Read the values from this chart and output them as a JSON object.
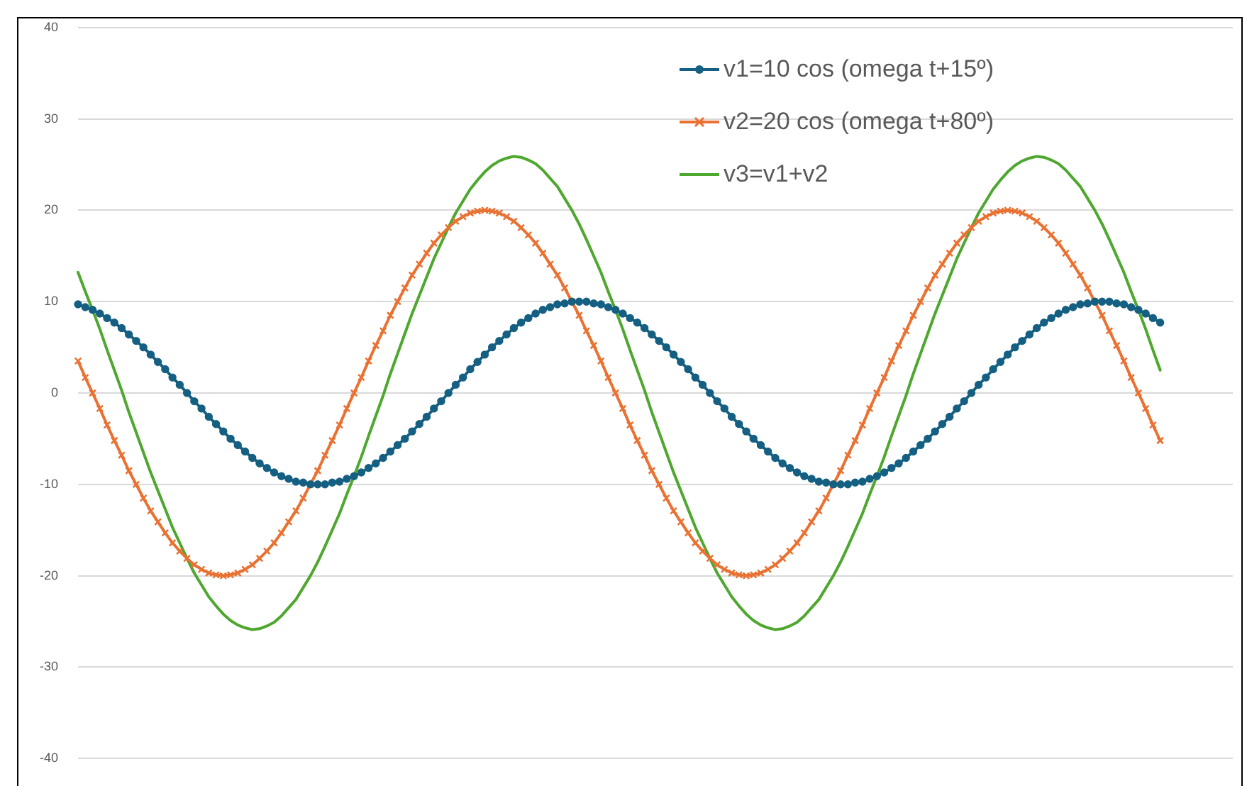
{
  "chart_data": {
    "type": "line",
    "categories": [
      null,
      null,
      null,
      null,
      null,
      null,
      null,
      null,
      null,
      null,
      null,
      null,
      null,
      null,
      null,
      null,
      null,
      null,
      null,
      null,
      null,
      null,
      null,
      null,
      null,
      null,
      null,
      null,
      null,
      null,
      null,
      null,
      null,
      null,
      null,
      null,
      null,
      null,
      null,
      null,
      null,
      null,
      null,
      null,
      null,
      null,
      null,
      null,
      null,
      null,
      null,
      null,
      null,
      null,
      null,
      null,
      null,
      null,
      null,
      null,
      null,
      null,
      null,
      null,
      null,
      null,
      null,
      null,
      null,
      null,
      null,
      null,
      null,
      null,
      null,
      null,
      null,
      null,
      null,
      null,
      null,
      null,
      null,
      null,
      null,
      null,
      null,
      null,
      null,
      null,
      null,
      null,
      null,
      null,
      null,
      null,
      null,
      null,
      null,
      null,
      null,
      null,
      null,
      null,
      null,
      null,
      null,
      null,
      null,
      null,
      null,
      null,
      null,
      null,
      null,
      null,
      null,
      null,
      null,
      null,
      null,
      null,
      null,
      null,
      null,
      null,
      null,
      null,
      null,
      null,
      null,
      null,
      null,
      null,
      null,
      null,
      null,
      null,
      null,
      null,
      null,
      null,
      null,
      null,
      null,
      null,
      null,
      null,
      null,
      null,
      null,
      null,
      null,
      null,
      null,
      null,
      null,
      null,
      null,
      null
    ],
    "series": [
      {
        "name": "v1=10 cos (omega t+15º)",
        "color": "#156082",
        "marker": "circle",
        "values": [
          9.7,
          9.4,
          9.1,
          8.7,
          8.2,
          7.7,
          7.1,
          6.4,
          5.7,
          5,
          4.2,
          3.4,
          2.6,
          1.7,
          0.9,
          0,
          -0.9,
          -1.7,
          -2.6,
          -3.4,
          -4.2,
          -5,
          -5.7,
          -6.4,
          -7.1,
          -7.7,
          -8.2,
          -8.7,
          -9.1,
          -9.4,
          -9.7,
          -9.8,
          -10,
          -10,
          -10,
          -9.8,
          -9.7,
          -9.4,
          -9.1,
          -8.7,
          -8.2,
          -7.7,
          -7.1,
          -6.4,
          -5.7,
          -5,
          -4.2,
          -3.4,
          -2.6,
          -1.7,
          -0.9,
          0,
          0.9,
          1.7,
          2.6,
          3.4,
          4.2,
          5,
          5.7,
          6.4,
          7.1,
          7.7,
          8.2,
          8.7,
          9.1,
          9.4,
          9.7,
          9.8,
          10,
          10,
          10,
          9.8,
          9.7,
          9.4,
          9.1,
          8.7,
          8.2,
          7.7,
          7.1,
          6.4,
          5.7,
          5,
          4.2,
          3.4,
          2.6,
          1.7,
          0.9,
          0,
          -0.9,
          -1.7,
          -2.6,
          -3.4,
          -4.2,
          -5,
          -5.7,
          -6.4,
          -7.1,
          -7.7,
          -8.2,
          -8.7,
          -9.1,
          -9.4,
          -9.7,
          -9.8,
          -10,
          -10,
          -10,
          -9.8,
          -9.7,
          -9.4,
          -9.1,
          -8.7,
          -8.2,
          -7.7,
          -7.1,
          -6.4,
          -5.7,
          -5,
          -4.2,
          -3.4,
          -2.6,
          -1.7,
          -0.9,
          0,
          0.9,
          1.7,
          2.6,
          3.4,
          4.2,
          5,
          5.7,
          6.4,
          7.1,
          7.7,
          8.2,
          8.7,
          9.1,
          9.4,
          9.7,
          9.8,
          10,
          10,
          10,
          9.8,
          9.7,
          9.4,
          9.1,
          8.7,
          8.2,
          7.7,
          null,
          null,
          null,
          null,
          null,
          null,
          null,
          null,
          null,
          null
        ]
      },
      {
        "name": "v2=20 cos (omega t+80º)",
        "color": "#e97132",
        "marker": "cross",
        "values": [
          3.5,
          1.7,
          0,
          -1.7,
          -3.5,
          -5.2,
          -6.8,
          -8.5,
          -10,
          -11.5,
          -12.9,
          -14.1,
          -15.3,
          -16.4,
          -17.3,
          -18.1,
          -18.8,
          -19.3,
          -19.7,
          -19.9,
          -20,
          -19.9,
          -19.7,
          -19.3,
          -18.8,
          -18.1,
          -17.3,
          -16.4,
          -15.3,
          -14.1,
          -12.9,
          -11.5,
          -10,
          -8.5,
          -6.8,
          -5.2,
          -3.5,
          -1.7,
          0,
          1.7,
          3.5,
          5.2,
          6.8,
          8.5,
          10,
          11.5,
          12.9,
          14.1,
          15.3,
          16.4,
          17.3,
          18.1,
          18.8,
          19.3,
          19.7,
          19.9,
          20,
          19.9,
          19.7,
          19.3,
          18.8,
          18.1,
          17.3,
          16.4,
          15.3,
          14.1,
          12.9,
          11.5,
          10,
          8.5,
          6.8,
          5.2,
          3.5,
          1.7,
          0,
          -1.7,
          -3.5,
          -5.2,
          -6.8,
          -8.5,
          -10,
          -11.5,
          -12.9,
          -14.1,
          -15.3,
          -16.4,
          -17.3,
          -18.1,
          -18.8,
          -19.3,
          -19.7,
          -19.9,
          -20,
          -19.9,
          -19.7,
          -19.3,
          -18.8,
          -18.1,
          -17.3,
          -16.4,
          -15.3,
          -14.1,
          -12.9,
          -11.5,
          -10,
          -8.5,
          -6.8,
          -5.2,
          -3.5,
          -1.7,
          0,
          1.7,
          3.5,
          5.2,
          6.8,
          8.5,
          10,
          11.5,
          12.9,
          14.1,
          15.3,
          16.4,
          17.3,
          18.1,
          18.8,
          19.3,
          19.7,
          19.9,
          20,
          19.9,
          19.7,
          19.3,
          18.8,
          18.1,
          17.3,
          16.4,
          15.3,
          14.1,
          12.9,
          11.5,
          10,
          8.5,
          6.8,
          5.2,
          3.5,
          1.7,
          0,
          -1.7,
          -3.5,
          -5.2,
          null,
          null,
          null,
          null,
          null,
          null,
          null,
          null,
          null,
          null
        ]
      },
      {
        "name": "v3=v1+v2",
        "color": "#4ea72e",
        "marker": "none",
        "values": [
          13.2,
          11.1,
          9.1,
          7,
          4.7,
          2.5,
          0.3,
          -2.1,
          -4.3,
          -6.5,
          -8.7,
          -10.7,
          -12.7,
          -14.7,
          -16.4,
          -18.1,
          -19.7,
          -21,
          -22.3,
          -23.3,
          -24.2,
          -24.9,
          -25.4,
          -25.7,
          -25.9,
          -25.8,
          -25.5,
          -25.1,
          -24.4,
          -23.5,
          -22.6,
          -21.3,
          -20,
          -18.5,
          -16.8,
          -15,
          -13.2,
          -11.1,
          -9.1,
          -7,
          -4.7,
          -2.5,
          -0.3,
          2.1,
          4.3,
          6.5,
          8.7,
          10.7,
          12.7,
          14.7,
          16.4,
          18.1,
          19.7,
          21,
          22.3,
          23.3,
          24.2,
          24.9,
          25.4,
          25.7,
          25.9,
          25.8,
          25.5,
          25.1,
          24.4,
          23.5,
          22.6,
          21.3,
          20,
          18.5,
          16.8,
          15,
          13.2,
          11.1,
          9.1,
          7,
          4.7,
          2.5,
          0.3,
          -2.1,
          -4.3,
          -6.5,
          -8.7,
          -10.7,
          -12.7,
          -14.7,
          -16.4,
          -18.1,
          -19.7,
          -21,
          -22.3,
          -23.3,
          -24.2,
          -24.9,
          -25.4,
          -25.7,
          -25.9,
          -25.8,
          -25.5,
          -25.1,
          -24.4,
          -23.5,
          -22.6,
          -21.3,
          -20,
          -18.5,
          -16.8,
          -15,
          -13.2,
          -11.1,
          -9.1,
          -7,
          -4.7,
          -2.5,
          -0.3,
          2.1,
          4.3,
          6.5,
          8.7,
          10.7,
          12.7,
          14.7,
          16.4,
          18.1,
          19.7,
          21,
          22.3,
          23.3,
          24.2,
          24.9,
          25.4,
          25.7,
          25.9,
          25.8,
          25.5,
          25.1,
          24.4,
          23.5,
          22.6,
          21.3,
          20,
          18.5,
          16.8,
          15,
          13.2,
          11.1,
          9.1,
          7,
          4.7,
          2.5,
          null,
          null,
          null,
          null,
          null,
          null,
          null,
          null,
          null,
          null
        ]
      }
    ],
    "ylim": [
      -40,
      40
    ],
    "yticks": [
      -40,
      -30,
      -20,
      -10,
      0,
      10,
      20,
      30,
      40
    ],
    "grid": "y",
    "legend": "top right",
    "tick_labels": "y"
  }
}
